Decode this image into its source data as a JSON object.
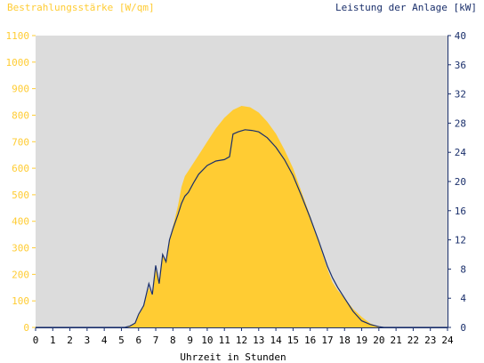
{
  "chart_data": {
    "type": "area",
    "left_axis_title": "Bestrahlungsstärke [W/qm]",
    "right_axis_title": "Leistung der Anlage [kW]",
    "xlabel": "Uhrzeit in Stunden",
    "x_ticks": [
      "0",
      "1",
      "2",
      "3",
      "4",
      "5",
      "6",
      "7",
      "8",
      "9",
      "10",
      "11",
      "12",
      "13",
      "14",
      "15",
      "16",
      "17",
      "18",
      "19",
      "20",
      "21",
      "22",
      "23",
      "24"
    ],
    "left_ticks": [
      "0",
      "100",
      "200",
      "300",
      "400",
      "500",
      "600",
      "700",
      "800",
      "900",
      "1000",
      "1100"
    ],
    "right_ticks": [
      "0",
      "4",
      "8",
      "12",
      "16",
      "20",
      "24",
      "28",
      "32",
      "36",
      "40"
    ],
    "xlim": [
      0,
      24
    ],
    "ylim_left": [
      0,
      1100
    ],
    "ylim_right": [
      0,
      40
    ],
    "grid": false,
    "colors": {
      "plot_background": "#dcdcdc",
      "irradiance": "#ffcc33",
      "power": "#1a2f6b",
      "left_axis_text": "#ffcc33",
      "right_axis_text": "#1a2f6b",
      "x_axis_text": "#000000"
    },
    "series": [
      {
        "name": "Bestrahlungsstärke",
        "axis": "left",
        "style": "area",
        "x": [
          0,
          5.2,
          5.5,
          5.8,
          6.0,
          6.3,
          6.6,
          6.8,
          7.0,
          7.2,
          7.4,
          7.6,
          7.8,
          8.0,
          8.3,
          8.5,
          8.7,
          8.9,
          9.2,
          9.5,
          10.0,
          10.5,
          11.0,
          11.5,
          12.0,
          12.5,
          13.0,
          13.5,
          14.0,
          14.5,
          15.0,
          15.5,
          16.0,
          16.5,
          17.0,
          17.3,
          17.6,
          18.0,
          18.5,
          19.0,
          19.5,
          20.0,
          20.3,
          24
        ],
        "y": [
          0,
          0,
          5,
          15,
          45,
          80,
          150,
          120,
          220,
          170,
          280,
          250,
          330,
          380,
          460,
          530,
          570,
          590,
          620,
          650,
          700,
          750,
          790,
          820,
          835,
          830,
          810,
          775,
          730,
          670,
          600,
          510,
          420,
          320,
          220,
          170,
          140,
          110,
          70,
          40,
          15,
          3,
          0,
          0
        ]
      },
      {
        "name": "Leistung der Anlage",
        "axis": "right",
        "style": "line",
        "x": [
          0,
          5.2,
          5.5,
          5.8,
          6.0,
          6.3,
          6.6,
          6.8,
          7.0,
          7.2,
          7.4,
          7.6,
          7.8,
          8.0,
          8.3,
          8.5,
          8.7,
          8.9,
          9.2,
          9.5,
          10.0,
          10.5,
          11.0,
          11.3,
          11.5,
          11.8,
          12.2,
          12.6,
          13.0,
          13.5,
          14.0,
          14.5,
          15.0,
          15.5,
          16.0,
          16.5,
          17.0,
          17.3,
          17.6,
          18.0,
          18.5,
          19.0,
          19.5,
          20.0,
          20.3,
          24
        ],
        "y": [
          0,
          0,
          0.2,
          0.6,
          1.8,
          3.0,
          6.0,
          4.5,
          8.5,
          6.0,
          10.0,
          9.0,
          12.0,
          13.5,
          15.5,
          17.0,
          18.0,
          18.5,
          19.8,
          21.0,
          22.2,
          22.8,
          23.0,
          23.4,
          26.5,
          26.8,
          27.1,
          27.0,
          26.8,
          26.0,
          24.7,
          23.0,
          20.8,
          18.0,
          15.0,
          11.8,
          8.4,
          6.8,
          5.5,
          4.0,
          2.2,
          0.9,
          0.4,
          0.1,
          0,
          0
        ]
      }
    ]
  }
}
